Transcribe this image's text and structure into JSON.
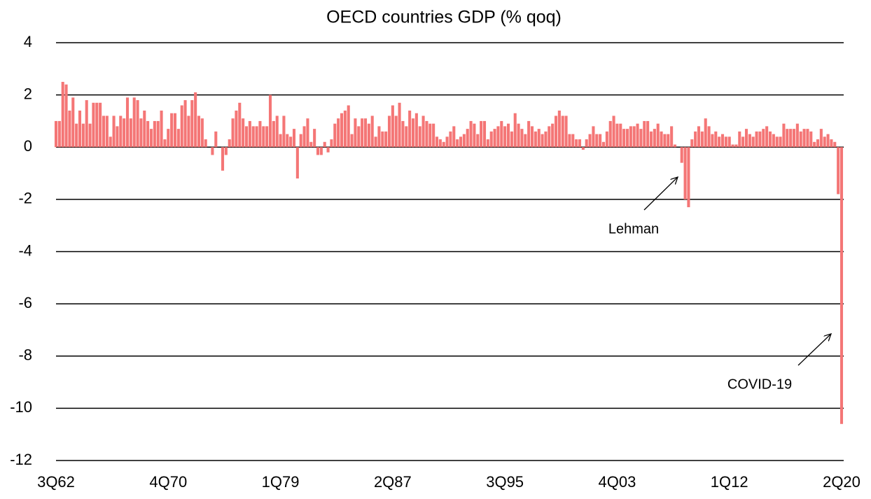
{
  "chart_data": {
    "type": "bar",
    "title": "OECD countries GDP (% qoq)",
    "categories": [
      "3Q62",
      null,
      null,
      null,
      null,
      null,
      null,
      null,
      null,
      null,
      null,
      null,
      null,
      null,
      null,
      null,
      null,
      null,
      null,
      null,
      null,
      null,
      null,
      null,
      null,
      null,
      null,
      null,
      null,
      null,
      null,
      null,
      null,
      "4Q70",
      null,
      null,
      null,
      null,
      null,
      null,
      null,
      null,
      null,
      null,
      null,
      null,
      null,
      null,
      null,
      null,
      null,
      null,
      null,
      null,
      null,
      null,
      null,
      null,
      null,
      null,
      null,
      null,
      null,
      null,
      null,
      null,
      "1Q79",
      null,
      null,
      null,
      null,
      null,
      null,
      null,
      null,
      null,
      null,
      null,
      null,
      null,
      null,
      null,
      null,
      null,
      null,
      null,
      null,
      null,
      null,
      null,
      null,
      null,
      null,
      null,
      null,
      null,
      null,
      null,
      null,
      "2Q87",
      null,
      null,
      null,
      null,
      null,
      null,
      null,
      null,
      null,
      null,
      null,
      null,
      null,
      null,
      null,
      null,
      null,
      null,
      null,
      null,
      null,
      null,
      null,
      null,
      null,
      null,
      null,
      null,
      null,
      null,
      null,
      null,
      "3Q95",
      null,
      null,
      null,
      null,
      null,
      null,
      null,
      null,
      null,
      null,
      null,
      null,
      null,
      null,
      null,
      null,
      null,
      null,
      null,
      null,
      null,
      null,
      null,
      null,
      null,
      null,
      null,
      null,
      null,
      null,
      null,
      null,
      "4Q03",
      null,
      null,
      null,
      null,
      null,
      null,
      null,
      null,
      null,
      null,
      null,
      null,
      null,
      null,
      null,
      null,
      null,
      null,
      null,
      null,
      null,
      null,
      null,
      null,
      null,
      null,
      null,
      null,
      null,
      null,
      null,
      null,
      "1Q12",
      null,
      null,
      null,
      null,
      null,
      null,
      null,
      null,
      null,
      null,
      null,
      null,
      null,
      null,
      null,
      null,
      null,
      null,
      null,
      null,
      null,
      null,
      null,
      null,
      null,
      null,
      null,
      null,
      null,
      null,
      null,
      null,
      "2Q20"
    ],
    "values": [
      1.0,
      1.0,
      2.5,
      2.4,
      1.4,
      1.9,
      0.9,
      1.4,
      0.9,
      1.8,
      0.9,
      1.7,
      1.7,
      1.7,
      1.2,
      1.2,
      0.4,
      1.2,
      0.8,
      1.2,
      1.1,
      1.9,
      1.1,
      1.9,
      1.8,
      1.1,
      1.4,
      1.0,
      0.7,
      1.0,
      1.0,
      1.4,
      0.3,
      0.7,
      1.3,
      1.3,
      0.7,
      1.6,
      1.8,
      1.2,
      1.8,
      2.1,
      1.2,
      1.1,
      0.3,
      0.0,
      -0.3,
      0.6,
      0.0,
      -0.9,
      -0.3,
      0.3,
      1.1,
      1.4,
      1.7,
      1.1,
      0.8,
      1.0,
      0.8,
      0.8,
      1.0,
      0.8,
      0.8,
      2.0,
      1.0,
      1.2,
      0.5,
      1.2,
      0.5,
      0.4,
      0.7,
      -1.2,
      0.5,
      0.8,
      1.1,
      0.2,
      0.7,
      -0.3,
      -0.3,
      0.2,
      -0.2,
      0.3,
      0.9,
      1.1,
      1.3,
      1.4,
      1.6,
      0.5,
      1.1,
      0.8,
      1.1,
      1.1,
      0.9,
      1.2,
      0.4,
      0.8,
      0.6,
      0.6,
      1.2,
      1.6,
      1.2,
      1.7,
      1.0,
      0.8,
      1.4,
      1.1,
      1.3,
      0.8,
      1.2,
      1.0,
      0.9,
      0.9,
      0.4,
      0.3,
      0.2,
      0.4,
      0.6,
      0.8,
      0.3,
      0.4,
      0.5,
      0.7,
      1.0,
      0.9,
      0.5,
      1.0,
      1.0,
      0.3,
      0.6,
      0.7,
      0.8,
      1.0,
      0.8,
      0.9,
      0.6,
      1.3,
      0.9,
      0.7,
      0.5,
      1.0,
      0.8,
      0.6,
      0.7,
      0.5,
      0.6,
      0.8,
      0.9,
      1.2,
      1.4,
      1.2,
      1.2,
      0.5,
      0.5,
      0.3,
      0.3,
      -0.1,
      0.3,
      0.5,
      0.8,
      0.5,
      0.5,
      0.2,
      0.6,
      1.0,
      1.2,
      0.9,
      0.9,
      0.7,
      0.7,
      0.8,
      0.8,
      0.9,
      0.7,
      1.0,
      1.0,
      0.6,
      0.7,
      0.9,
      0.6,
      0.5,
      0.5,
      0.8,
      0.1,
      0.0,
      -0.6,
      -2.0,
      -2.3,
      0.3,
      0.6,
      0.8,
      0.6,
      1.1,
      0.8,
      0.5,
      0.6,
      0.4,
      0.5,
      0.4,
      0.4,
      0.1,
      0.1,
      0.6,
      0.4,
      0.7,
      0.5,
      0.4,
      0.6,
      0.6,
      0.7,
      0.8,
      0.6,
      0.5,
      0.4,
      0.4,
      0.9,
      0.7,
      0.7,
      0.7,
      0.9,
      0.6,
      0.7,
      0.7,
      0.6,
      0.2,
      0.3,
      0.7,
      0.4,
      0.5,
      0.3,
      0.2,
      -1.8,
      -10.6
    ],
    "color": "#f47676",
    "ylim": [
      -12,
      4
    ],
    "yticks": [
      -12,
      -10,
      -8,
      -6,
      -4,
      -2,
      0,
      2,
      4
    ],
    "grid": true,
    "annotations": [
      "Lehman",
      "COVID-19"
    ]
  }
}
